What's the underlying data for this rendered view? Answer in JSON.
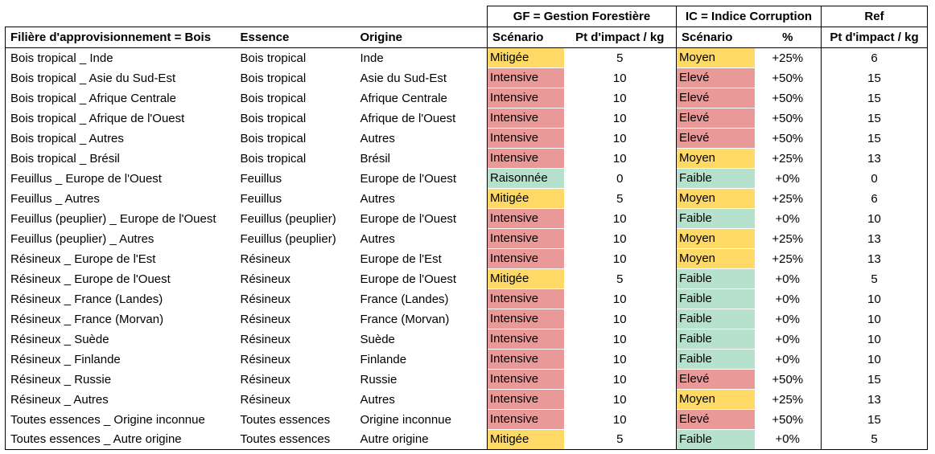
{
  "groups": {
    "gf": "GF = Gestion Forestière",
    "ic": "IC = Indice Corruption",
    "ref": "Ref"
  },
  "headers": {
    "filiere": "Filière d'approvisionnement = Bois",
    "essence": "Essence",
    "origine": "Origine",
    "gf_scenario": "Scénario",
    "gf_impact": "Pt d'impact / kg",
    "ic_scenario": "Scénario",
    "ic_pct": "%",
    "ref_impact": "Pt d'impact / kg"
  },
  "colors": {
    "Mitigée": "#ffd966",
    "Intensive": "#ea9999",
    "Raisonnée": "#b6e1cd",
    "Moyen": "#ffd966",
    "Elevé": "#ea9999",
    "Faible": "#b6e1cd"
  },
  "rows": [
    {
      "filiere": "Bois tropical _ Inde",
      "essence": "Bois tropical",
      "origine": "Inde",
      "gf": "Mitigée",
      "gf_pts": "5",
      "ic": "Moyen",
      "ic_pct": "+25%",
      "ref": "6"
    },
    {
      "filiere": "Bois tropical _ Asie du Sud-Est",
      "essence": "Bois tropical",
      "origine": "Asie du Sud-Est",
      "gf": "Intensive",
      "gf_pts": "10",
      "ic": "Elevé",
      "ic_pct": "+50%",
      "ref": "15"
    },
    {
      "filiere": "Bois tropical _ Afrique Centrale",
      "essence": "Bois tropical",
      "origine": "Afrique Centrale",
      "gf": "Intensive",
      "gf_pts": "10",
      "ic": "Elevé",
      "ic_pct": "+50%",
      "ref": "15"
    },
    {
      "filiere": "Bois tropical _ Afrique de l'Ouest",
      "essence": "Bois tropical",
      "origine": "Afrique de l'Ouest",
      "gf": "Intensive",
      "gf_pts": "10",
      "ic": "Elevé",
      "ic_pct": "+50%",
      "ref": "15"
    },
    {
      "filiere": "Bois tropical _ Autres",
      "essence": "Bois tropical",
      "origine": "Autres",
      "gf": "Intensive",
      "gf_pts": "10",
      "ic": "Elevé",
      "ic_pct": "+50%",
      "ref": "15"
    },
    {
      "filiere": "Bois tropical _ Brésil",
      "essence": "Bois tropical",
      "origine": "Brésil",
      "gf": "Intensive",
      "gf_pts": "10",
      "ic": "Moyen",
      "ic_pct": "+25%",
      "ref": "13"
    },
    {
      "filiere": "Feuillus _ Europe de l'Ouest",
      "essence": "Feuillus",
      "origine": "Europe de l'Ouest",
      "gf": "Raisonnée",
      "gf_pts": "0",
      "ic": "Faible",
      "ic_pct": "+0%",
      "ref": "0"
    },
    {
      "filiere": "Feuillus _ Autres",
      "essence": "Feuillus",
      "origine": "Autres",
      "gf": "Mitigée",
      "gf_pts": "5",
      "ic": "Moyen",
      "ic_pct": "+25%",
      "ref": "6"
    },
    {
      "filiere": "Feuillus (peuplier) _ Europe de l'Ouest",
      "essence": "Feuillus (peuplier)",
      "origine": "Europe de l'Ouest",
      "gf": "Intensive",
      "gf_pts": "10",
      "ic": "Faible",
      "ic_pct": "+0%",
      "ref": "10"
    },
    {
      "filiere": "Feuillus (peuplier) _ Autres",
      "essence": "Feuillus (peuplier)",
      "origine": "Autres",
      "gf": "Intensive",
      "gf_pts": "10",
      "ic": "Moyen",
      "ic_pct": "+25%",
      "ref": "13"
    },
    {
      "filiere": "Résineux _ Europe de l'Est",
      "essence": "Résineux",
      "origine": "Europe de l'Est",
      "gf": "Intensive",
      "gf_pts": "10",
      "ic": "Moyen",
      "ic_pct": "+25%",
      "ref": "13"
    },
    {
      "filiere": "Résineux _ Europe de l'Ouest",
      "essence": "Résineux",
      "origine": "Europe de l'Ouest",
      "gf": "Mitigée",
      "gf_pts": "5",
      "ic": "Faible",
      "ic_pct": "+0%",
      "ref": "5"
    },
    {
      "filiere": "Résineux _ France (Landes)",
      "essence": "Résineux",
      "origine": "France (Landes)",
      "gf": "Intensive",
      "gf_pts": "10",
      "ic": "Faible",
      "ic_pct": "+0%",
      "ref": "10"
    },
    {
      "filiere": "Résineux _ France (Morvan)",
      "essence": "Résineux",
      "origine": "France (Morvan)",
      "gf": "Intensive",
      "gf_pts": "10",
      "ic": "Faible",
      "ic_pct": "+0%",
      "ref": "10"
    },
    {
      "filiere": "Résineux _ Suède",
      "essence": "Résineux",
      "origine": "Suède",
      "gf": "Intensive",
      "gf_pts": "10",
      "ic": "Faible",
      "ic_pct": "+0%",
      "ref": "10"
    },
    {
      "filiere": "Résineux _ Finlande",
      "essence": "Résineux",
      "origine": "Finlande",
      "gf": "Intensive",
      "gf_pts": "10",
      "ic": "Faible",
      "ic_pct": "+0%",
      "ref": "10"
    },
    {
      "filiere": "Résineux _ Russie",
      "essence": "Résineux",
      "origine": "Russie",
      "gf": "Intensive",
      "gf_pts": "10",
      "ic": "Elevé",
      "ic_pct": "+50%",
      "ref": "15"
    },
    {
      "filiere": "Résineux _ Autres",
      "essence": "Résineux",
      "origine": "Autres",
      "gf": "Intensive",
      "gf_pts": "10",
      "ic": "Moyen",
      "ic_pct": "+25%",
      "ref": "13"
    },
    {
      "filiere": "Toutes essences _ Origine inconnue",
      "essence": "Toutes essences",
      "origine": "Origine inconnue",
      "gf": "Intensive",
      "gf_pts": "10",
      "ic": "Elevé",
      "ic_pct": "+50%",
      "ref": "15"
    },
    {
      "filiere": "Toutes essences _ Autre origine",
      "essence": "Toutes essences",
      "origine": "Autre origine",
      "gf": "Mitigée",
      "gf_pts": "5",
      "ic": "Faible",
      "ic_pct": "+0%",
      "ref": "5"
    }
  ]
}
